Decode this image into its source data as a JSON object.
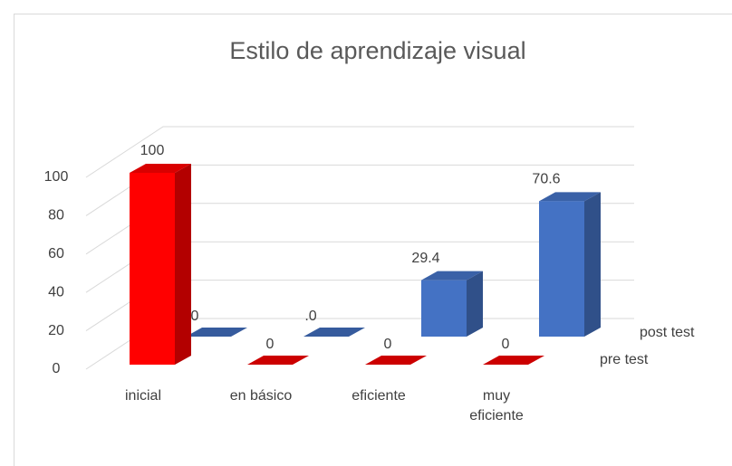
{
  "chart_data": {
    "type": "bar3d",
    "title": "Estilo de aprendizaje visual",
    "categories": [
      "inicial",
      "en básico",
      "eficiente",
      "muy eficiente"
    ],
    "series": [
      {
        "name": "pre test",
        "color": "#ff0000",
        "values": [
          100,
          0,
          0,
          0
        ]
      },
      {
        "name": "post test",
        "color": "#4472c4",
        "values": [
          0,
          0,
          29.4,
          70.6
        ],
        "value_labels": [
          "0",
          ".0",
          "29.4",
          "70.6"
        ]
      }
    ],
    "ylim": [
      0,
      100
    ],
    "yticks": [
      0,
      20,
      40,
      60,
      80,
      100
    ],
    "grid": true
  }
}
